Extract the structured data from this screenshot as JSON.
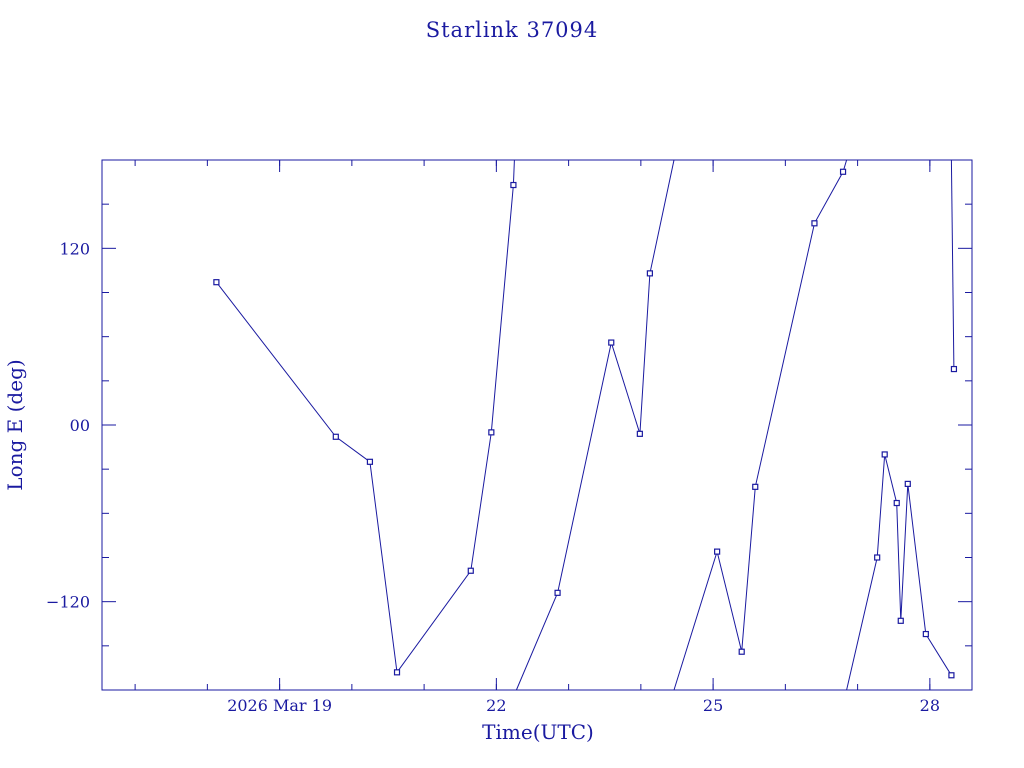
{
  "chart_data": {
    "type": "line",
    "title": "Starlink 37094",
    "xlabel": "Time(UTC)",
    "ylabel": "Long E (deg)",
    "colors": {
      "ink": "#1a1aa0",
      "background": "#ffffff"
    },
    "grid": false,
    "legend": "none",
    "xlim": [
      "2026-03-16T13:00",
      "2026-03-28T14:00"
    ],
    "ylim": [
      -180,
      180
    ],
    "x_ticks": [
      {
        "value": "2026-03-19",
        "label": "2026 Mar 19"
      },
      {
        "value": "2026-03-22",
        "label": "22"
      },
      {
        "value": "2026-03-25",
        "label": "25"
      },
      {
        "value": "2026-03-28",
        "label": "28"
      }
    ],
    "y_ticks": [
      {
        "value": 120,
        "label": "120"
      },
      {
        "value": 0,
        "label": "00"
      },
      {
        "value": -120,
        "label": "−120"
      }
    ],
    "points": [
      {
        "x": "2026-03-18T03:00",
        "y": 97
      },
      {
        "x": "2026-03-19T18:40",
        "y": -8
      },
      {
        "x": "2026-03-20T06:00",
        "y": -25
      },
      {
        "x": "2026-03-20T15:00",
        "y": -168
      },
      {
        "x": "2026-03-21T15:30",
        "y": -99
      },
      {
        "x": "2026-03-21T22:20",
        "y": -5
      },
      {
        "x": "2026-03-22T05:40",
        "y": 163
      },
      {
        "x": "2026-03-22T06:00",
        "y": 180,
        "break_after": true
      },
      {
        "x": "2026-03-22T06:40",
        "y": -180
      },
      {
        "x": "2026-03-22T20:20",
        "y": -114
      },
      {
        "x": "2026-03-23T14:10",
        "y": 56
      },
      {
        "x": "2026-03-23T23:40",
        "y": -6
      },
      {
        "x": "2026-03-24T03:00",
        "y": 103
      },
      {
        "x": "2026-03-24T11:00",
        "y": 180,
        "break_after": true
      },
      {
        "x": "2026-03-24T11:00",
        "y": -180
      },
      {
        "x": "2026-03-25T01:20",
        "y": -86
      },
      {
        "x": "2026-03-25T09:30",
        "y": -154
      },
      {
        "x": "2026-03-25T14:00",
        "y": -42
      },
      {
        "x": "2026-03-26T09:40",
        "y": 137
      },
      {
        "x": "2026-03-26T19:10",
        "y": 172
      },
      {
        "x": "2026-03-26T20:20",
        "y": 180,
        "break_after": true
      },
      {
        "x": "2026-03-26T20:20",
        "y": -180
      },
      {
        "x": "2026-03-27T06:30",
        "y": -90
      },
      {
        "x": "2026-03-27T09:00",
        "y": -20
      },
      {
        "x": "2026-03-27T13:00",
        "y": -53
      },
      {
        "x": "2026-03-27T14:20",
        "y": -133
      },
      {
        "x": "2026-03-27T16:40",
        "y": -40
      },
      {
        "x": "2026-03-27T22:40",
        "y": -142
      },
      {
        "x": "2026-03-28T07:10",
        "y": -170,
        "break_after": true
      },
      {
        "x": "2026-03-28T07:10",
        "y": 180
      },
      {
        "x": "2026-03-28T08:00",
        "y": 38
      }
    ]
  }
}
